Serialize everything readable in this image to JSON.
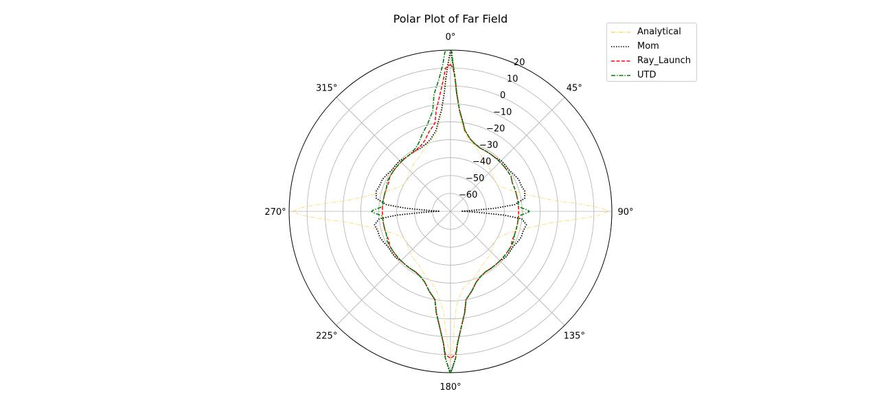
{
  "chart_data": {
    "type": "polar-line",
    "title": "Polar Plot of Far Field",
    "r_range": [
      -70,
      20
    ],
    "r_ticks": [
      -60,
      -50,
      -40,
      -30,
      -20,
      -10,
      0,
      10,
      20
    ],
    "theta_ticks": [
      "0°",
      "45°",
      "90°",
      "135°",
      "180°",
      "225°",
      "270°",
      "315°"
    ],
    "theta_zero": "top",
    "theta_direction": "clockwise",
    "grid": true,
    "legend_placement": "top-right",
    "series": [
      {
        "name": "Analytical",
        "color": "#ffd966",
        "style": "dashdot",
        "theta_deg": [
          0,
          1,
          2,
          3,
          4,
          5,
          6,
          8,
          10,
          12,
          15,
          20,
          25,
          30,
          35,
          40,
          45,
          50,
          55,
          60,
          65,
          70,
          75,
          80,
          84,
          86,
          88,
          89,
          90,
          91,
          92,
          94,
          96,
          100,
          105,
          110,
          115,
          120,
          125,
          130,
          135,
          140,
          145,
          150,
          155,
          160,
          165,
          170,
          172,
          174,
          176,
          177,
          178,
          179,
          180,
          181,
          182,
          183,
          184,
          186,
          188,
          190,
          195,
          200,
          205,
          210,
          215,
          220,
          225,
          230,
          235,
          240,
          245,
          250,
          255,
          260,
          264,
          266,
          268,
          269,
          270,
          271,
          272,
          274,
          276,
          280,
          285,
          290,
          295,
          300,
          305,
          310,
          315,
          320,
          325,
          330,
          335,
          340,
          345,
          348,
          350,
          352,
          354,
          355,
          356,
          357,
          358,
          359,
          360
        ],
        "r_db": [
          15,
          13,
          6,
          -2,
          -8,
          -14,
          -18,
          -22,
          -25,
          -27,
          -29,
          -31,
          -33,
          -35,
          -36,
          -37,
          -38,
          -39,
          -40,
          -40,
          -38,
          -35,
          -30,
          -22,
          -12,
          -2,
          10,
          15,
          18,
          15,
          10,
          -2,
          -12,
          -22,
          -30,
          -35,
          -38,
          -40,
          -40,
          -39,
          -38,
          -37,
          -36,
          -35,
          -33,
          -31,
          -29,
          -27,
          -25,
          -22,
          -18,
          -14,
          -8,
          6,
          15,
          6,
          -2,
          -8,
          -14,
          -18,
          -22,
          -25,
          -29,
          -31,
          -33,
          -35,
          -36,
          -37,
          -38,
          -39,
          -40,
          -40,
          -38,
          -35,
          -30,
          -22,
          -12,
          -2,
          10,
          15,
          18,
          15,
          10,
          -2,
          -12,
          -22,
          -30,
          -35,
          -38,
          -40,
          -40,
          -39,
          -38,
          -37,
          -36,
          -35,
          -33,
          -31,
          -29,
          -27,
          -25,
          -22,
          -18,
          -14,
          -8,
          -2,
          6,
          13,
          15
        ]
      },
      {
        "name": "Mom",
        "color": "#000000",
        "style": "dotted",
        "theta_deg": [
          0,
          1,
          2,
          3,
          5,
          8,
          10,
          15,
          20,
          25,
          30,
          35,
          40,
          45,
          50,
          55,
          60,
          65,
          70,
          75,
          80,
          84,
          86,
          88,
          89,
          90,
          91,
          92,
          94,
          96,
          100,
          105,
          110,
          115,
          120,
          125,
          130,
          135,
          140,
          145,
          150,
          155,
          160,
          165,
          170,
          172,
          175,
          177,
          178,
          179,
          180,
          181,
          182,
          183,
          185,
          188,
          190,
          195,
          200,
          205,
          210,
          215,
          220,
          225,
          230,
          235,
          240,
          245,
          250,
          255,
          260,
          264,
          266,
          268,
          269,
          270,
          271,
          272,
          274,
          276,
          280,
          285,
          290,
          295,
          300,
          305,
          310,
          315,
          320,
          325,
          330,
          335,
          340,
          345,
          350,
          352,
          355,
          357,
          358,
          359,
          360
        ],
        "r_db": [
          20,
          12,
          4,
          -4,
          -13,
          -20,
          -24,
          -28,
          -30,
          -31,
          -31,
          -31,
          -31,
          -30,
          -30,
          -30,
          -29,
          -28,
          -28,
          -27,
          -28,
          -34,
          -45,
          -60,
          -64,
          -62,
          -60,
          -55,
          -40,
          -30,
          -27,
          -28,
          -28,
          -29,
          -30,
          -30,
          -30,
          -31,
          -31,
          -31,
          -31,
          -30,
          -28,
          -24,
          -20,
          -13,
          -4,
          4,
          12,
          16,
          20,
          16,
          12,
          4,
          -4,
          -13,
          -20,
          -24,
          -28,
          -30,
          -31,
          -31,
          -31,
          -31,
          -30,
          -30,
          -30,
          -29,
          -28,
          -28,
          -27,
          -30,
          -40,
          -55,
          -60,
          -62,
          -64,
          -60,
          -45,
          -34,
          -28,
          -27,
          -28,
          -28,
          -29,
          -30,
          -30,
          -30,
          -31,
          -31,
          -31,
          -31,
          -30,
          -28,
          -24,
          -20,
          -13,
          -4,
          4,
          12,
          20
        ]
      },
      {
        "name": "Ray_Launch",
        "color": "#ff0000",
        "style": "dashed",
        "theta_deg": [
          0,
          1,
          2,
          3,
          5,
          8,
          10,
          15,
          20,
          25,
          30,
          35,
          40,
          45,
          50,
          55,
          60,
          65,
          70,
          75,
          80,
          84,
          86,
          88,
          89,
          90,
          91,
          92,
          94,
          96,
          100,
          105,
          110,
          115,
          120,
          125,
          130,
          135,
          140,
          145,
          150,
          155,
          160,
          165,
          170,
          172,
          175,
          177,
          178,
          179,
          180,
          181,
          182,
          183,
          185,
          188,
          190,
          195,
          200,
          205,
          210,
          215,
          220,
          225,
          230,
          235,
          240,
          245,
          250,
          255,
          260,
          264,
          266,
          268,
          269,
          270,
          271,
          272,
          274,
          276,
          280,
          285,
          290,
          295,
          300,
          305,
          310,
          315,
          320,
          325,
          330,
          335,
          340,
          345,
          350,
          352,
          355,
          357,
          358,
          359,
          360
        ],
        "r_db": [
          12,
          10,
          4,
          -4,
          -13,
          -20,
          -24,
          -28,
          -30,
          -31,
          -31,
          -31,
          -31,
          -31,
          -31,
          -31,
          -31,
          -32,
          -32,
          -32,
          -32,
          -32,
          -32,
          -32,
          -32,
          -32,
          -32,
          -32,
          -32,
          -32,
          -32,
          -32,
          -32,
          -32,
          -31,
          -31,
          -31,
          -31,
          -31,
          -31,
          -31,
          -30,
          -28,
          -24,
          -20,
          -13,
          -4,
          4,
          10,
          11,
          12,
          11,
          10,
          4,
          -4,
          -13,
          -20,
          -24,
          -28,
          -30,
          -31,
          -31,
          -31,
          -31,
          -31,
          -31,
          -31,
          -32,
          -32,
          -32,
          -32,
          -32,
          -32,
          -32,
          -32,
          -32,
          -32,
          -32,
          -32,
          -32,
          -32,
          -32,
          -32,
          -32,
          -31,
          -31,
          -31,
          -31,
          -31,
          -31,
          -31,
          -30,
          -28,
          -24,
          -20,
          -13,
          -4,
          4,
          10,
          11,
          12
        ]
      },
      {
        "name": "UTD",
        "color": "#008000",
        "style": "dashdot",
        "theta_deg": [
          0,
          0.5,
          1,
          2,
          3,
          5,
          8,
          10,
          15,
          20,
          25,
          30,
          35,
          40,
          45,
          50,
          55,
          60,
          65,
          70,
          75,
          80,
          84,
          86,
          88,
          89,
          90,
          91,
          92,
          94,
          96,
          100,
          105,
          110,
          115,
          120,
          125,
          130,
          135,
          140,
          145,
          150,
          155,
          160,
          165,
          170,
          172,
          175,
          177,
          178,
          179,
          179.5,
          180,
          180.5,
          181,
          182,
          183,
          185,
          188,
          190,
          195,
          200,
          205,
          210,
          215,
          220,
          225,
          230,
          235,
          240,
          245,
          250,
          255,
          260,
          264,
          266,
          268,
          269,
          270,
          271,
          272,
          274,
          276,
          280,
          285,
          290,
          295,
          300,
          305,
          310,
          315,
          320,
          325,
          330,
          335,
          340,
          345,
          350,
          352,
          355,
          357,
          358,
          359,
          359.5,
          360
        ],
        "r_db": [
          20,
          19,
          12,
          4,
          -4,
          -13,
          -20,
          -24,
          -28,
          -30,
          -31,
          -31,
          -31,
          -31,
          -31,
          -31,
          -31,
          -31,
          -32,
          -32,
          -32,
          -32,
          -32,
          -32,
          -29,
          -27,
          -26,
          -27,
          -29,
          -32,
          -32,
          -32,
          -32,
          -32,
          -31,
          -31,
          -31,
          -31,
          -31,
          -31,
          -31,
          -31,
          -30,
          -28,
          -24,
          -20,
          -13,
          -4,
          4,
          12,
          16,
          19,
          20,
          19,
          16,
          12,
          4,
          -4,
          -13,
          -20,
          -24,
          -28,
          -30,
          -31,
          -31,
          -31,
          -31,
          -31,
          -31,
          -31,
          -31,
          -32,
          -32,
          -32,
          -32,
          -32,
          -29,
          -27,
          -26,
          -27,
          -29,
          -32,
          -32,
          -32,
          -32,
          -32,
          -31,
          -31,
          -31,
          -31,
          -31,
          -31,
          -31,
          -30,
          -28,
          -24,
          -20,
          -13,
          -4,
          4,
          12,
          19,
          20
        ]
      }
    ]
  }
}
